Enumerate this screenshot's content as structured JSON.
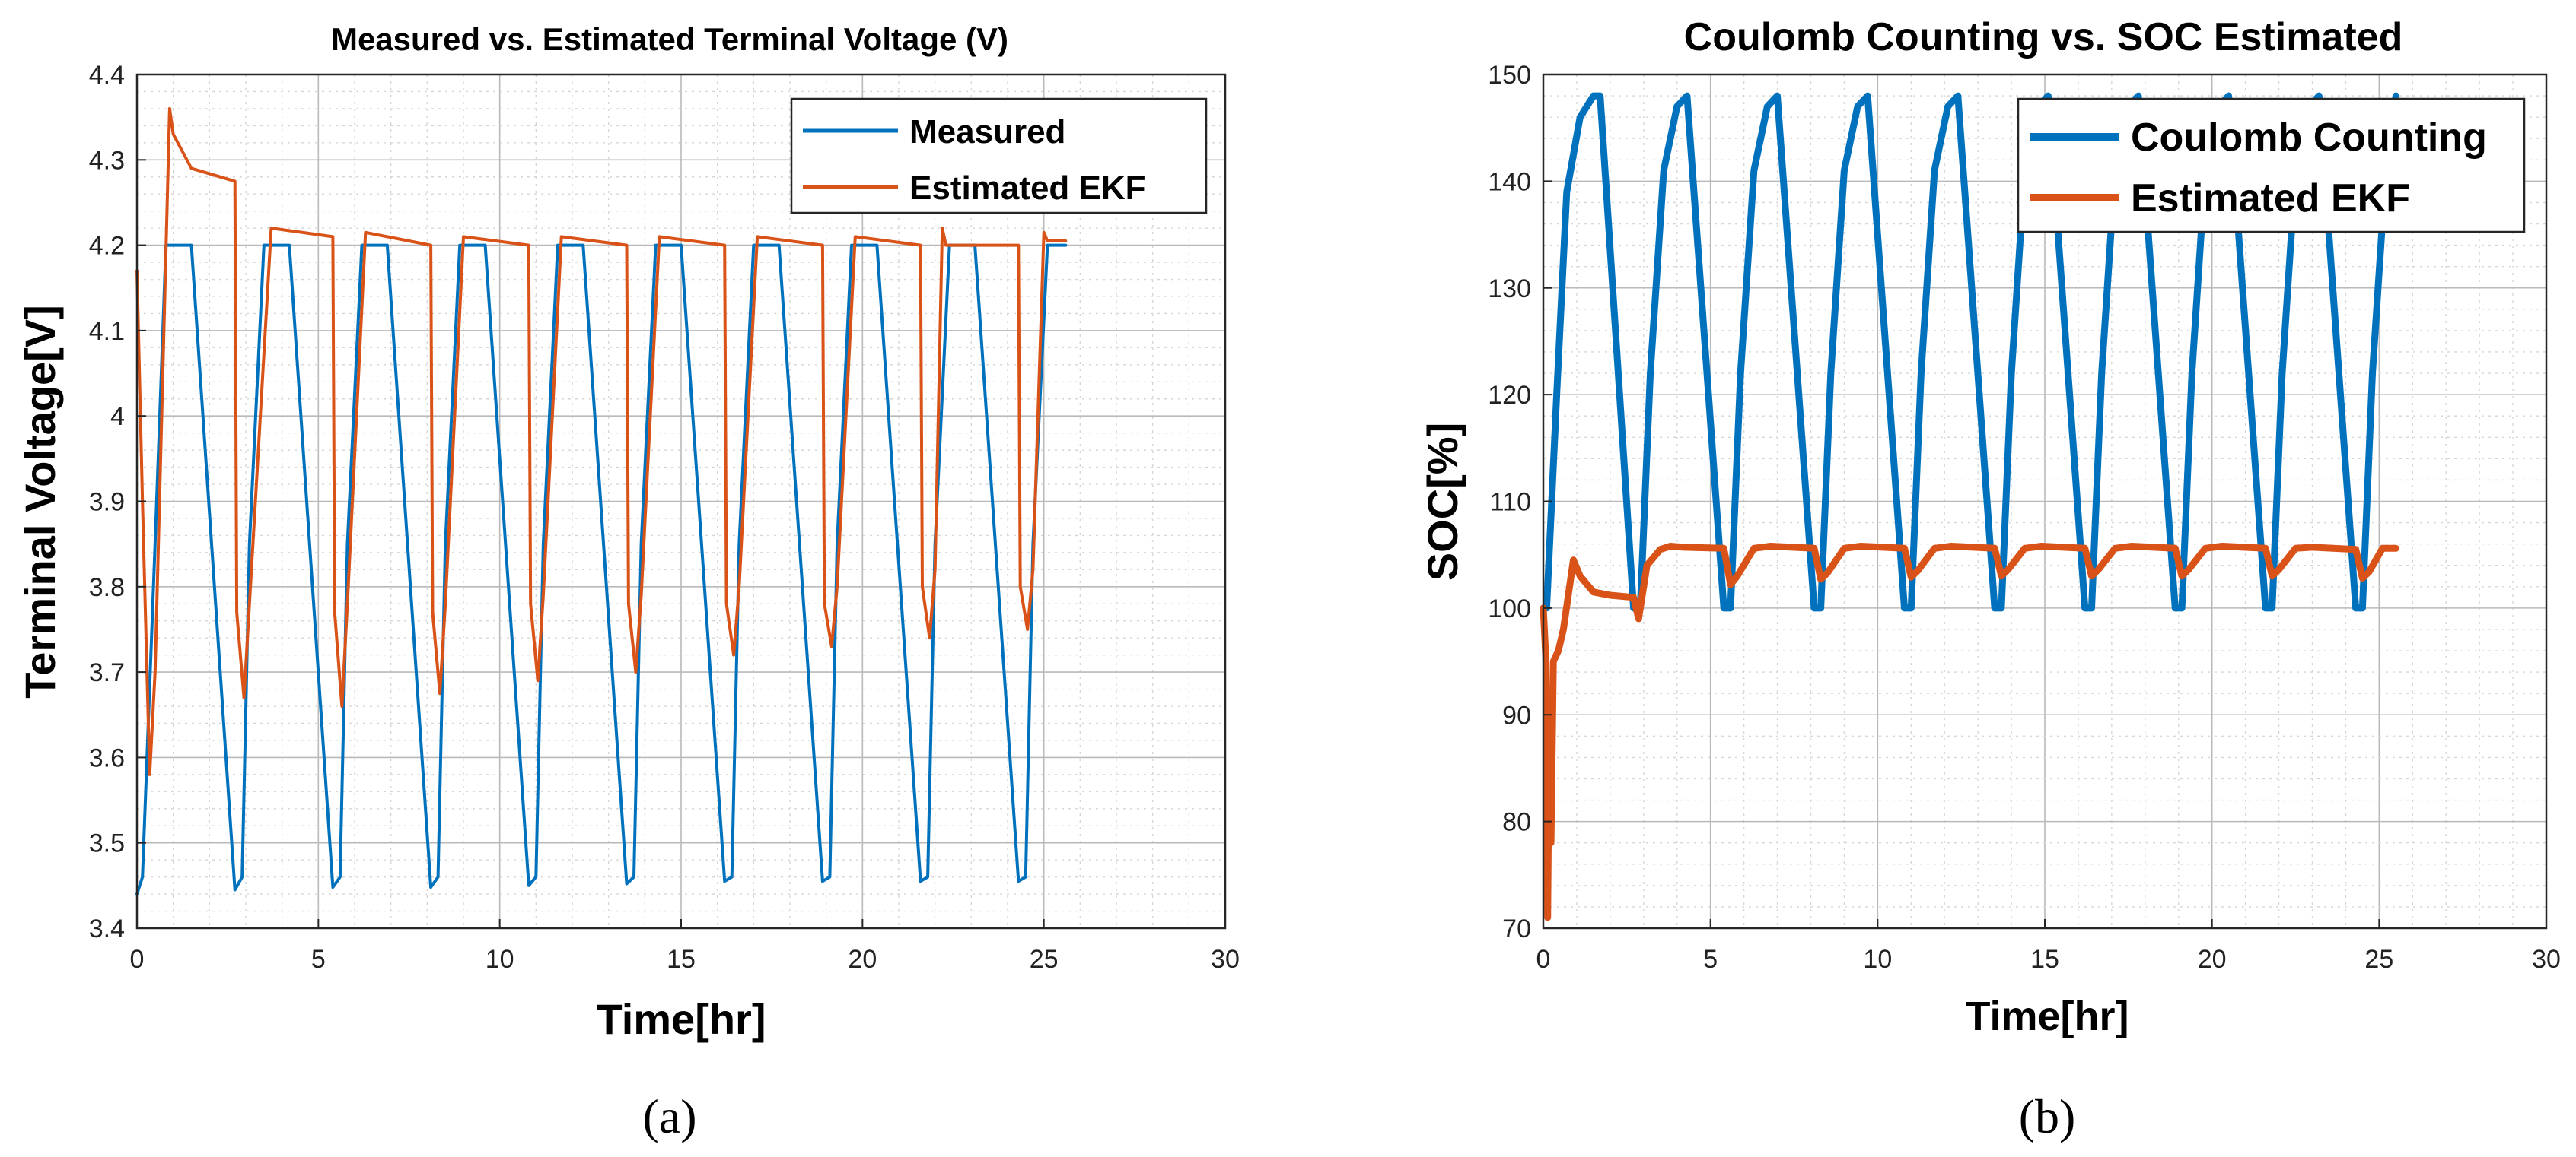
{
  "colors": {
    "measured": "#0072BD",
    "estimated": "#D95319",
    "grid": "#b9b9b9",
    "axes": "#262626"
  },
  "chart_data": [
    {
      "type": "line",
      "panel_label": "(a)",
      "title": "Measured vs. Estimated Terminal Voltage (V)",
      "xlabel": "Time[hr]",
      "ylabel": "Terminal Voltage[V]",
      "xlim": [
        0,
        30
      ],
      "ylim": [
        3.4,
        4.4
      ],
      "xticks": [
        0,
        5,
        10,
        15,
        20,
        25,
        30
      ],
      "xtick_labels": [
        "0",
        "5",
        "10",
        "15",
        "20",
        "25",
        "30"
      ],
      "yticks": [
        3.4,
        3.5,
        3.6,
        3.7,
        3.8,
        3.9,
        4.0,
        4.1,
        4.2,
        4.3,
        4.4
      ],
      "ytick_labels": [
        "3.4",
        "3.5",
        "3.6",
        "3.7",
        "3.8",
        "3.9",
        "4",
        "4.1",
        "4.2",
        "4.3",
        "4.4"
      ],
      "grid": true,
      "legend_position": "top-right",
      "series": [
        {
          "name": "Measured",
          "color": "#0072BD",
          "x": [
            0,
            0.15,
            0.5,
            0.8,
            1.5,
            2.7,
            2.9,
            3.1,
            3.5,
            4.2,
            5.4,
            5.6,
            5.8,
            6.2,
            6.9,
            8.1,
            8.3,
            8.5,
            8.9,
            9.6,
            10.8,
            11.0,
            11.2,
            11.6,
            12.3,
            13.5,
            13.7,
            13.9,
            14.3,
            15.0,
            16.2,
            16.4,
            16.6,
            17.0,
            17.7,
            18.9,
            19.1,
            19.3,
            19.7,
            20.4,
            21.6,
            21.8,
            22.0,
            22.4,
            23.1,
            24.3,
            24.5,
            24.7,
            25.1,
            25.6
          ],
          "y": [
            3.44,
            3.46,
            3.85,
            4.2,
            4.2,
            3.445,
            3.46,
            3.85,
            4.2,
            4.2,
            3.448,
            3.46,
            3.85,
            4.2,
            4.2,
            3.448,
            3.46,
            3.85,
            4.2,
            4.2,
            3.45,
            3.46,
            3.85,
            4.2,
            4.2,
            3.452,
            3.46,
            3.85,
            4.2,
            4.2,
            3.455,
            3.46,
            3.85,
            4.2,
            4.2,
            3.455,
            3.46,
            3.85,
            4.2,
            4.2,
            3.455,
            3.46,
            3.85,
            4.2,
            4.2,
            3.455,
            3.46,
            3.85,
            4.2,
            4.2
          ]
        },
        {
          "name": "Estimated EKF",
          "color": "#D95319",
          "x": [
            0,
            0.15,
            0.35,
            0.5,
            0.9,
            1.0,
            1.5,
            2.7,
            2.75,
            2.95,
            3.1,
            3.7,
            5.4,
            5.45,
            5.65,
            5.8,
            6.3,
            8.1,
            8.15,
            8.35,
            8.5,
            9.0,
            10.8,
            10.85,
            11.05,
            11.2,
            11.7,
            13.5,
            13.55,
            13.75,
            13.9,
            14.4,
            16.2,
            16.25,
            16.45,
            16.6,
            17.1,
            18.9,
            18.95,
            19.15,
            19.3,
            19.8,
            21.6,
            21.65,
            21.85,
            22.0,
            22.2,
            22.3,
            22.8,
            24.3,
            24.35,
            24.55,
            24.7,
            25.0,
            25.1,
            25.6
          ],
          "y": [
            4.17,
            3.9,
            3.58,
            3.7,
            4.36,
            4.33,
            4.29,
            4.275,
            3.77,
            3.67,
            3.78,
            4.22,
            4.21,
            3.77,
            3.66,
            3.78,
            4.215,
            4.2,
            3.77,
            3.675,
            3.78,
            4.21,
            4.2,
            3.78,
            3.69,
            3.79,
            4.21,
            4.2,
            3.78,
            3.7,
            3.79,
            4.21,
            4.2,
            3.78,
            3.72,
            3.8,
            4.21,
            4.2,
            3.78,
            3.73,
            3.8,
            4.21,
            4.2,
            3.8,
            3.74,
            3.82,
            4.22,
            4.2,
            4.2,
            4.2,
            3.8,
            3.75,
            3.82,
            4.215,
            4.205,
            4.205
          ]
        }
      ]
    },
    {
      "type": "line",
      "panel_label": "(b)",
      "title": "Coulomb Counting vs. SOC Estimated",
      "xlabel": "Time[hr]",
      "ylabel": "SOC[%]",
      "xlim": [
        0,
        30
      ],
      "ylim": [
        70,
        150
      ],
      "xticks": [
        0,
        5,
        10,
        15,
        20,
        25,
        30
      ],
      "xtick_labels": [
        "0",
        "5",
        "10",
        "15",
        "20",
        "25",
        "30"
      ],
      "yticks": [
        70,
        80,
        90,
        100,
        110,
        120,
        130,
        140,
        150
      ],
      "ytick_labels": [
        "70",
        "80",
        "90",
        "100",
        "110",
        "120",
        "130",
        "140",
        "150"
      ],
      "grid": true,
      "legend_position": "top-right",
      "series": [
        {
          "name": "Coulomb Counting",
          "color": "#0072BD",
          "x": [
            0,
            0.1,
            0.4,
            0.7,
            1.1,
            1.5,
            1.7,
            2.7,
            2.9,
            3.2,
            3.6,
            4.0,
            4.3,
            5.4,
            5.6,
            5.9,
            6.3,
            6.7,
            7.0,
            8.1,
            8.3,
            8.6,
            9.0,
            9.4,
            9.7,
            10.8,
            11.0,
            11.3,
            11.7,
            12.1,
            12.4,
            13.5,
            13.7,
            14.0,
            14.4,
            14.8,
            15.1,
            16.2,
            16.4,
            16.7,
            17.1,
            17.5,
            17.8,
            18.9,
            19.1,
            19.4,
            19.8,
            20.2,
            20.5,
            21.6,
            21.8,
            22.1,
            22.5,
            22.9,
            23.2,
            24.3,
            24.5,
            24.8,
            25.2,
            25.5
          ],
          "y": [
            100,
            100,
            120,
            139,
            146,
            148,
            148,
            100,
            100,
            122,
            141,
            147,
            148,
            100,
            100,
            122,
            141,
            147,
            148,
            100,
            100,
            122,
            141,
            147,
            148,
            100,
            100,
            122,
            141,
            147,
            148,
            100,
            100,
            122,
            141,
            147,
            148,
            100,
            100,
            122,
            141,
            147,
            148,
            100,
            100,
            122,
            141,
            147,
            148,
            100,
            100,
            122,
            141,
            147,
            148,
            100,
            100,
            122,
            141,
            148
          ]
        },
        {
          "name": "Estimated EKF",
          "color": "#D95319",
          "x": [
            0,
            0.08,
            0.13,
            0.18,
            0.23,
            0.3,
            0.45,
            0.6,
            0.9,
            1.1,
            1.5,
            2.0,
            2.7,
            2.85,
            2.95,
            3.1,
            3.5,
            3.8,
            4.2,
            5.4,
            5.6,
            5.8,
            6.3,
            6.8,
            8.1,
            8.3,
            8.5,
            9.0,
            9.5,
            10.8,
            11.0,
            11.2,
            11.7,
            12.2,
            13.5,
            13.7,
            13.9,
            14.4,
            14.9,
            16.2,
            16.4,
            16.6,
            17.1,
            17.6,
            18.9,
            19.1,
            19.3,
            19.8,
            20.3,
            21.6,
            21.8,
            22.0,
            22.5,
            23.0,
            24.3,
            24.5,
            24.7,
            25.1,
            25.5
          ],
          "y": [
            100,
            95,
            71,
            90,
            78,
            95,
            96,
            98,
            104.5,
            103,
            101.5,
            101.2,
            101,
            99,
            101,
            104,
            105.5,
            105.8,
            105.7,
            105.6,
            102.2,
            103,
            105.6,
            105.8,
            105.6,
            102.7,
            103.3,
            105.6,
            105.8,
            105.6,
            102.9,
            103.5,
            105.6,
            105.8,
            105.6,
            103,
            103.6,
            105.6,
            105.8,
            105.6,
            103,
            103.6,
            105.6,
            105.8,
            105.6,
            103,
            103.6,
            105.6,
            105.8,
            105.6,
            103,
            103.6,
            105.6,
            105.7,
            105.5,
            102.8,
            103.4,
            105.6,
            105.6
          ]
        }
      ]
    }
  ]
}
